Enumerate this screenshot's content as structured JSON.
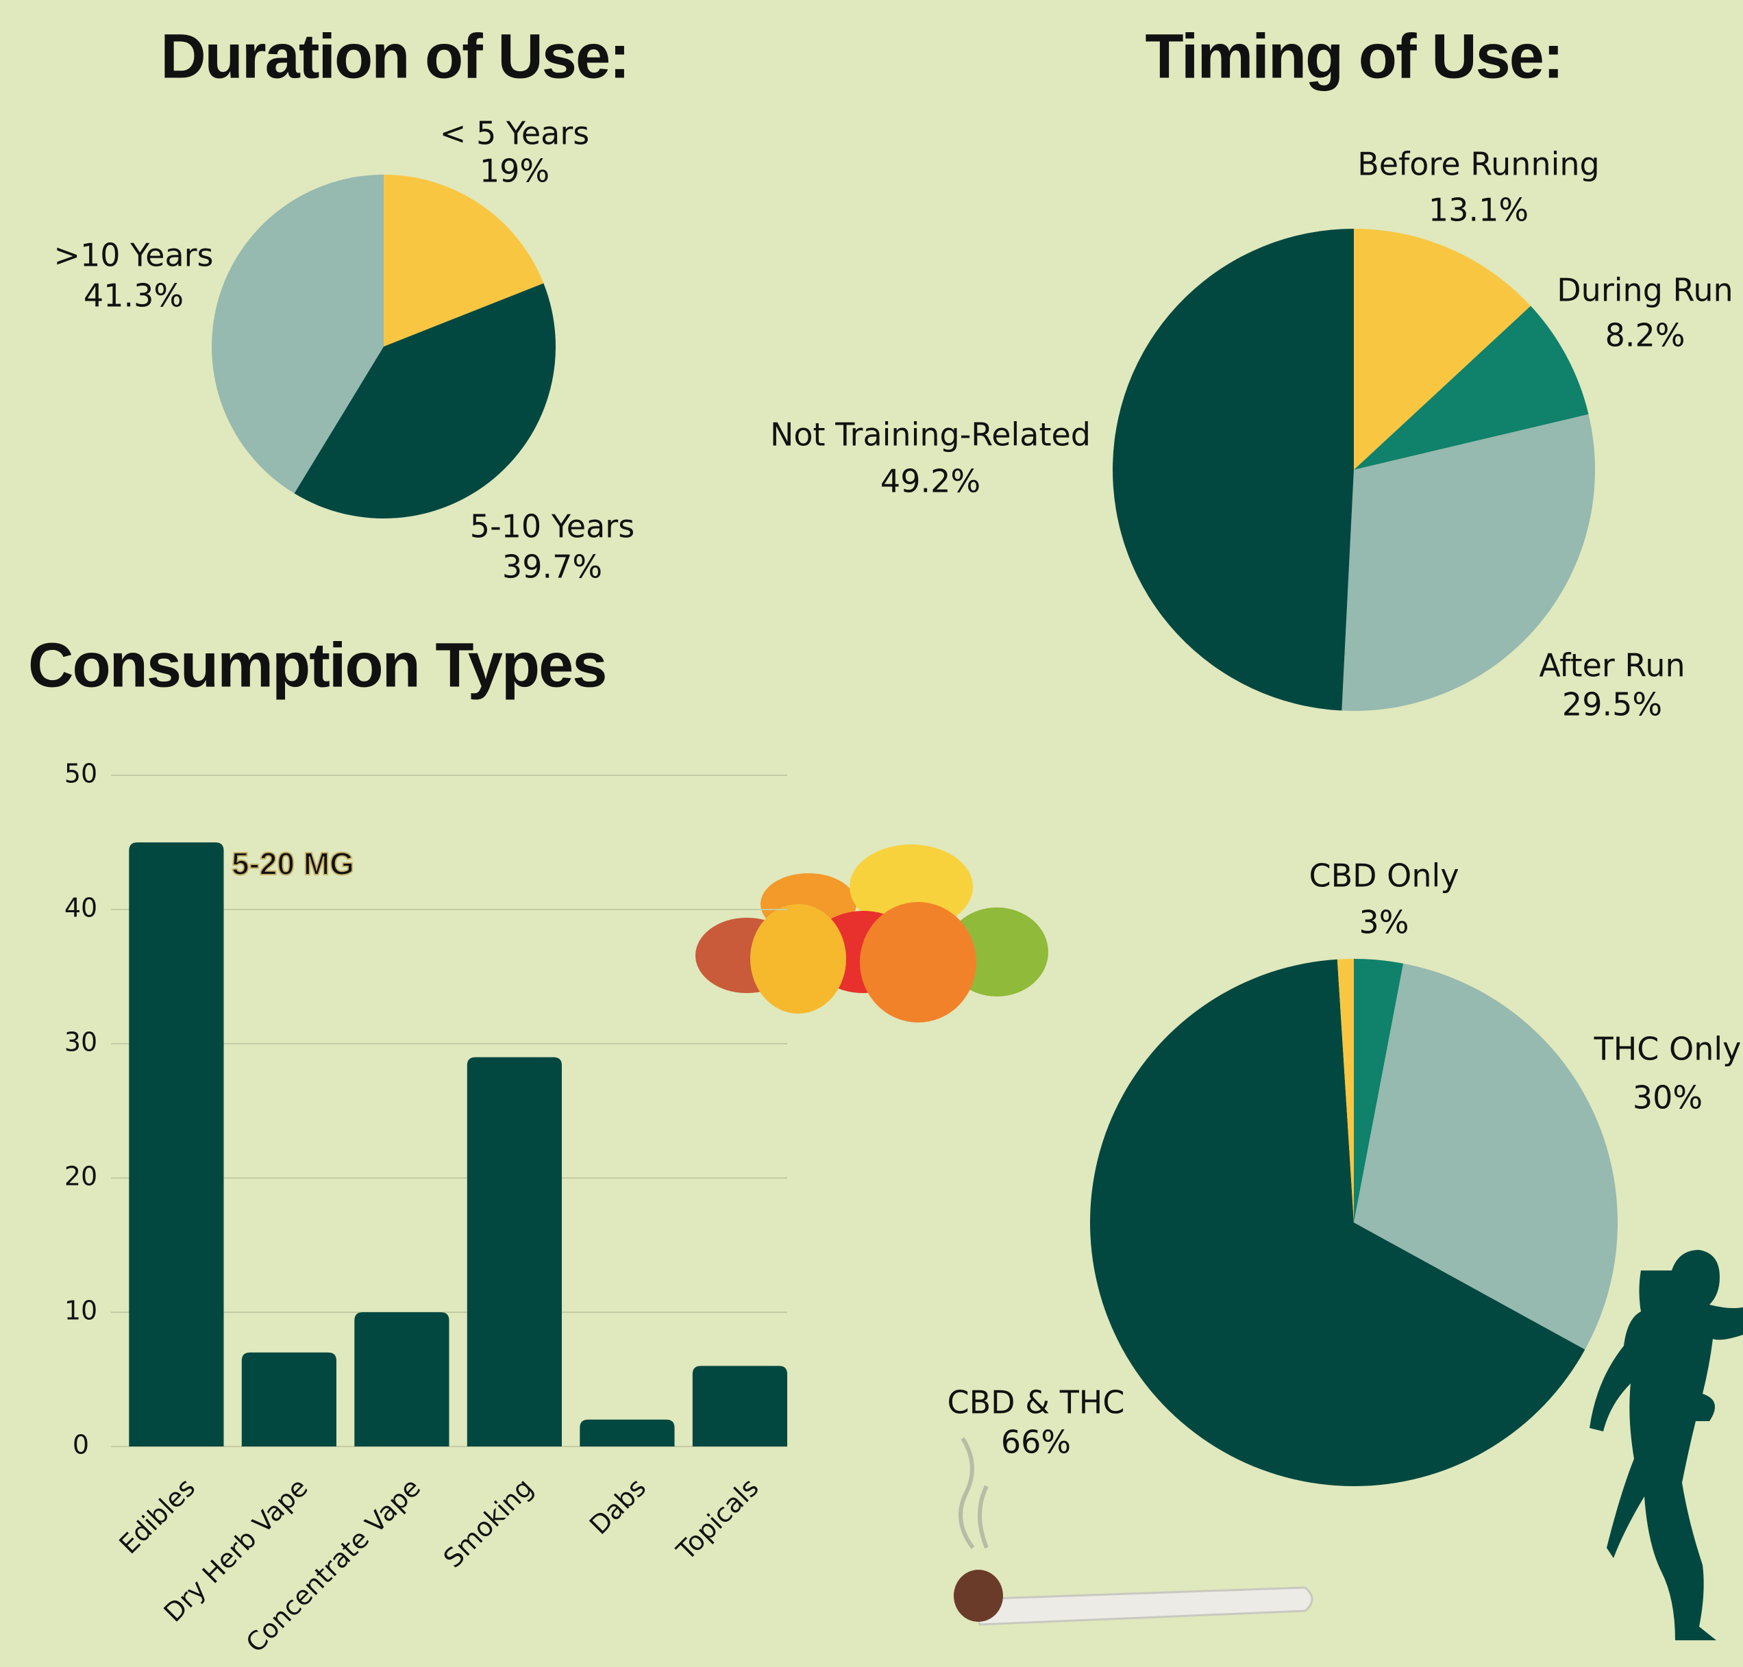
{
  "chart_data": [
    {
      "type": "pie",
      "title": "Duration of Use:",
      "categories": [
        "< 5 Years",
        "5-10 Years",
        ">10 Years"
      ],
      "values": [
        19,
        39.7,
        41.3
      ],
      "value_labels": [
        "19%",
        "39.7%",
        "41.3%"
      ],
      "colors": [
        "#f9c642",
        "#034840",
        "#96b9b0"
      ]
    },
    {
      "type": "pie",
      "title": "Timing of Use:",
      "categories": [
        "Before Running",
        "During Run",
        "After Run",
        "Not Training-Related"
      ],
      "values": [
        13.1,
        8.2,
        29.5,
        49.2
      ],
      "value_labels": [
        "13.1%",
        "8.2%",
        "29.5%",
        "49.2%"
      ],
      "colors": [
        "#f9c642",
        "#10816a",
        "#96b9b0",
        "#034840"
      ]
    },
    {
      "type": "bar",
      "title": "Consumption Types",
      "categories": [
        "Edibles",
        "Dry Herb Vape",
        "Concentrate Vape",
        "Smoking",
        "Dabs",
        "Topicals"
      ],
      "values": [
        45,
        7,
        10,
        29,
        2,
        6
      ],
      "color": "#034840",
      "ylim": [
        0,
        50
      ],
      "yticks": [
        0,
        10,
        20,
        30,
        40,
        50
      ],
      "grid": true,
      "annotation": "5-20 MG"
    },
    {
      "type": "pie",
      "categories": [
        "CBD Only",
        "THC Only",
        "CBD & THC",
        null
      ],
      "values": [
        3,
        30,
        66,
        1
      ],
      "value_labels": [
        "3%",
        "30%",
        "66%",
        null
      ],
      "colors": [
        "#10816a",
        "#96b9b0",
        "#034840",
        "#f9c642"
      ]
    }
  ]
}
